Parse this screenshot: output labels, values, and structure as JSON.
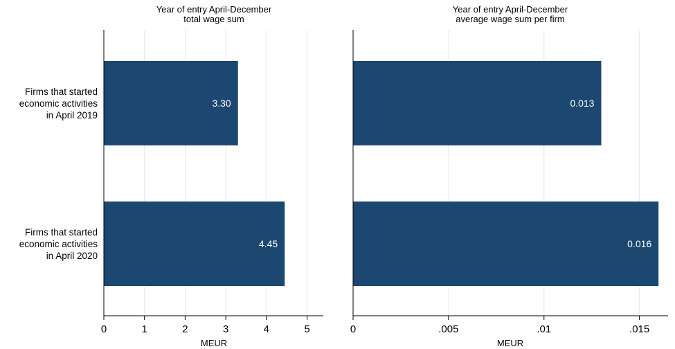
{
  "categories": [
    [
      "Firms that started",
      "economic activities",
      "in April 2019"
    ],
    [
      "Firms that started",
      "economic activities",
      "in April 2020"
    ]
  ],
  "chart_data": [
    {
      "type": "bar",
      "orientation": "horizontal",
      "title": [
        "Year of entry April-December",
        "total wage sum"
      ],
      "xlabel": "MEUR",
      "xlim": [
        0,
        5.4
      ],
      "ticks": [
        0,
        1,
        2,
        3,
        4,
        5
      ],
      "tick_labels": [
        "0",
        "1",
        "2",
        "3",
        "4",
        "5"
      ],
      "values": [
        3.3,
        4.45
      ],
      "value_labels": [
        "3.30",
        "4.45"
      ],
      "grid": true,
      "bar_color": "#1c4770"
    },
    {
      "type": "bar",
      "orientation": "horizontal",
      "title": [
        "Year of entry April-December",
        "average wage sum per firm"
      ],
      "xlabel": "MEUR",
      "xlim": [
        0,
        0.0165
      ],
      "ticks": [
        0,
        0.005,
        0.01,
        0.015
      ],
      "tick_labels": [
        "0",
        ".005",
        ".01",
        ".015"
      ],
      "values": [
        0.013,
        0.016
      ],
      "value_labels": [
        "0.013",
        "0.016"
      ],
      "grid": true,
      "bar_color": "#1c4770"
    }
  ]
}
